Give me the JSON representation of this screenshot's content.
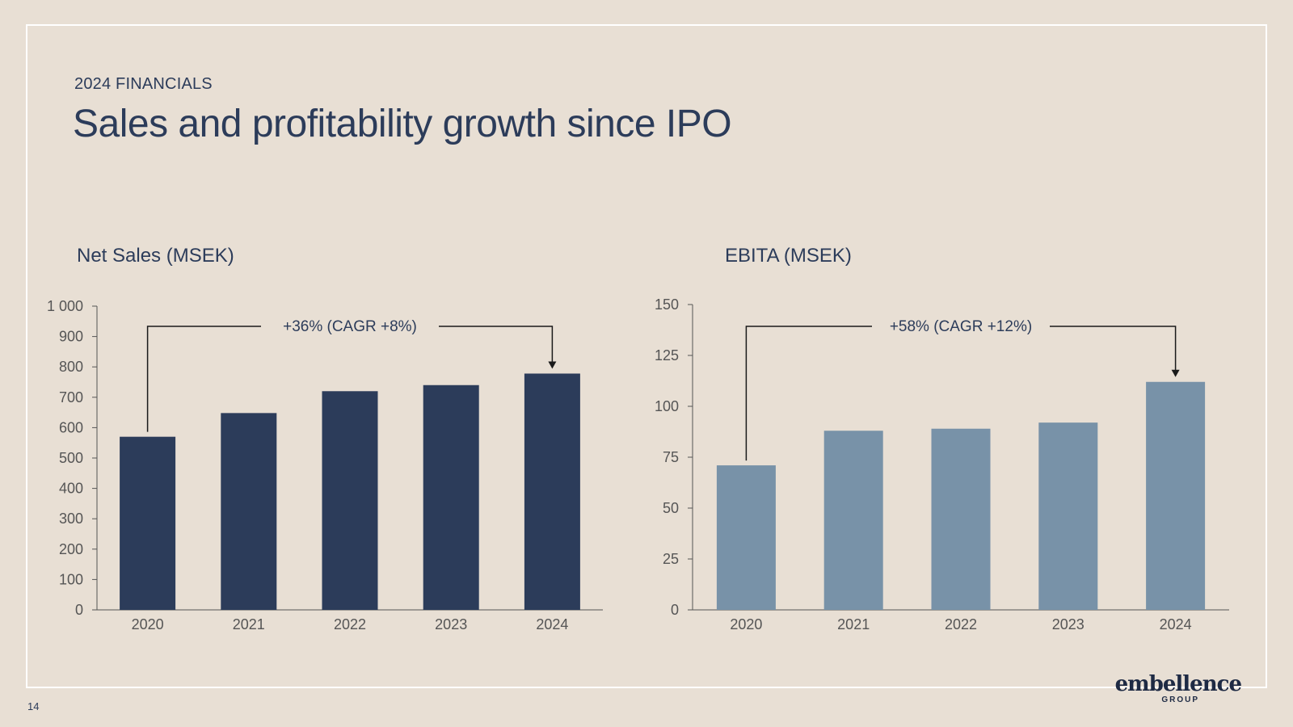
{
  "header": {
    "eyebrow": "2024 FINANCIALS",
    "title": "Sales and profitability growth since IPO"
  },
  "page_number": "14",
  "logo": {
    "main": "embellence",
    "sub": "GROUP"
  },
  "colors": {
    "background": "#e8dfd4",
    "net_sales_bar": "#2c3c5a",
    "ebita_bar": "#7892a8",
    "axis": "#555555",
    "text": "#2c3c5a"
  },
  "chart_data": [
    {
      "id": "net",
      "type": "bar",
      "title": "Net Sales (MSEK)",
      "categories": [
        "2020",
        "2021",
        "2022",
        "2023",
        "2024"
      ],
      "values": [
        570,
        648,
        720,
        740,
        778
      ],
      "ylim": [
        0,
        1000
      ],
      "yticks": [
        0,
        100,
        200,
        300,
        400,
        500,
        600,
        700,
        800,
        900,
        1000
      ],
      "ytick_labels": [
        "0",
        "100",
        "200",
        "300",
        "400",
        "500",
        "600",
        "700",
        "800",
        "900",
        "1 000"
      ],
      "xlabel": "",
      "ylabel": "",
      "annotation": "+36% (CAGR +8%)",
      "annotation_from": "2020",
      "annotation_to": "2024"
    },
    {
      "id": "ebita",
      "type": "bar",
      "title": "EBITA (MSEK)",
      "categories": [
        "2020",
        "2021",
        "2022",
        "2023",
        "2024"
      ],
      "values": [
        71,
        88,
        89,
        92,
        112
      ],
      "ylim": [
        0,
        150
      ],
      "yticks": [
        0,
        25,
        50,
        75,
        100,
        125,
        150
      ],
      "ytick_labels": [
        "0",
        "25",
        "50",
        "75",
        "100",
        "125",
        "150"
      ],
      "xlabel": "",
      "ylabel": "",
      "annotation": "+58% (CAGR +12%)",
      "annotation_from": "2020",
      "annotation_to": "2024"
    }
  ]
}
